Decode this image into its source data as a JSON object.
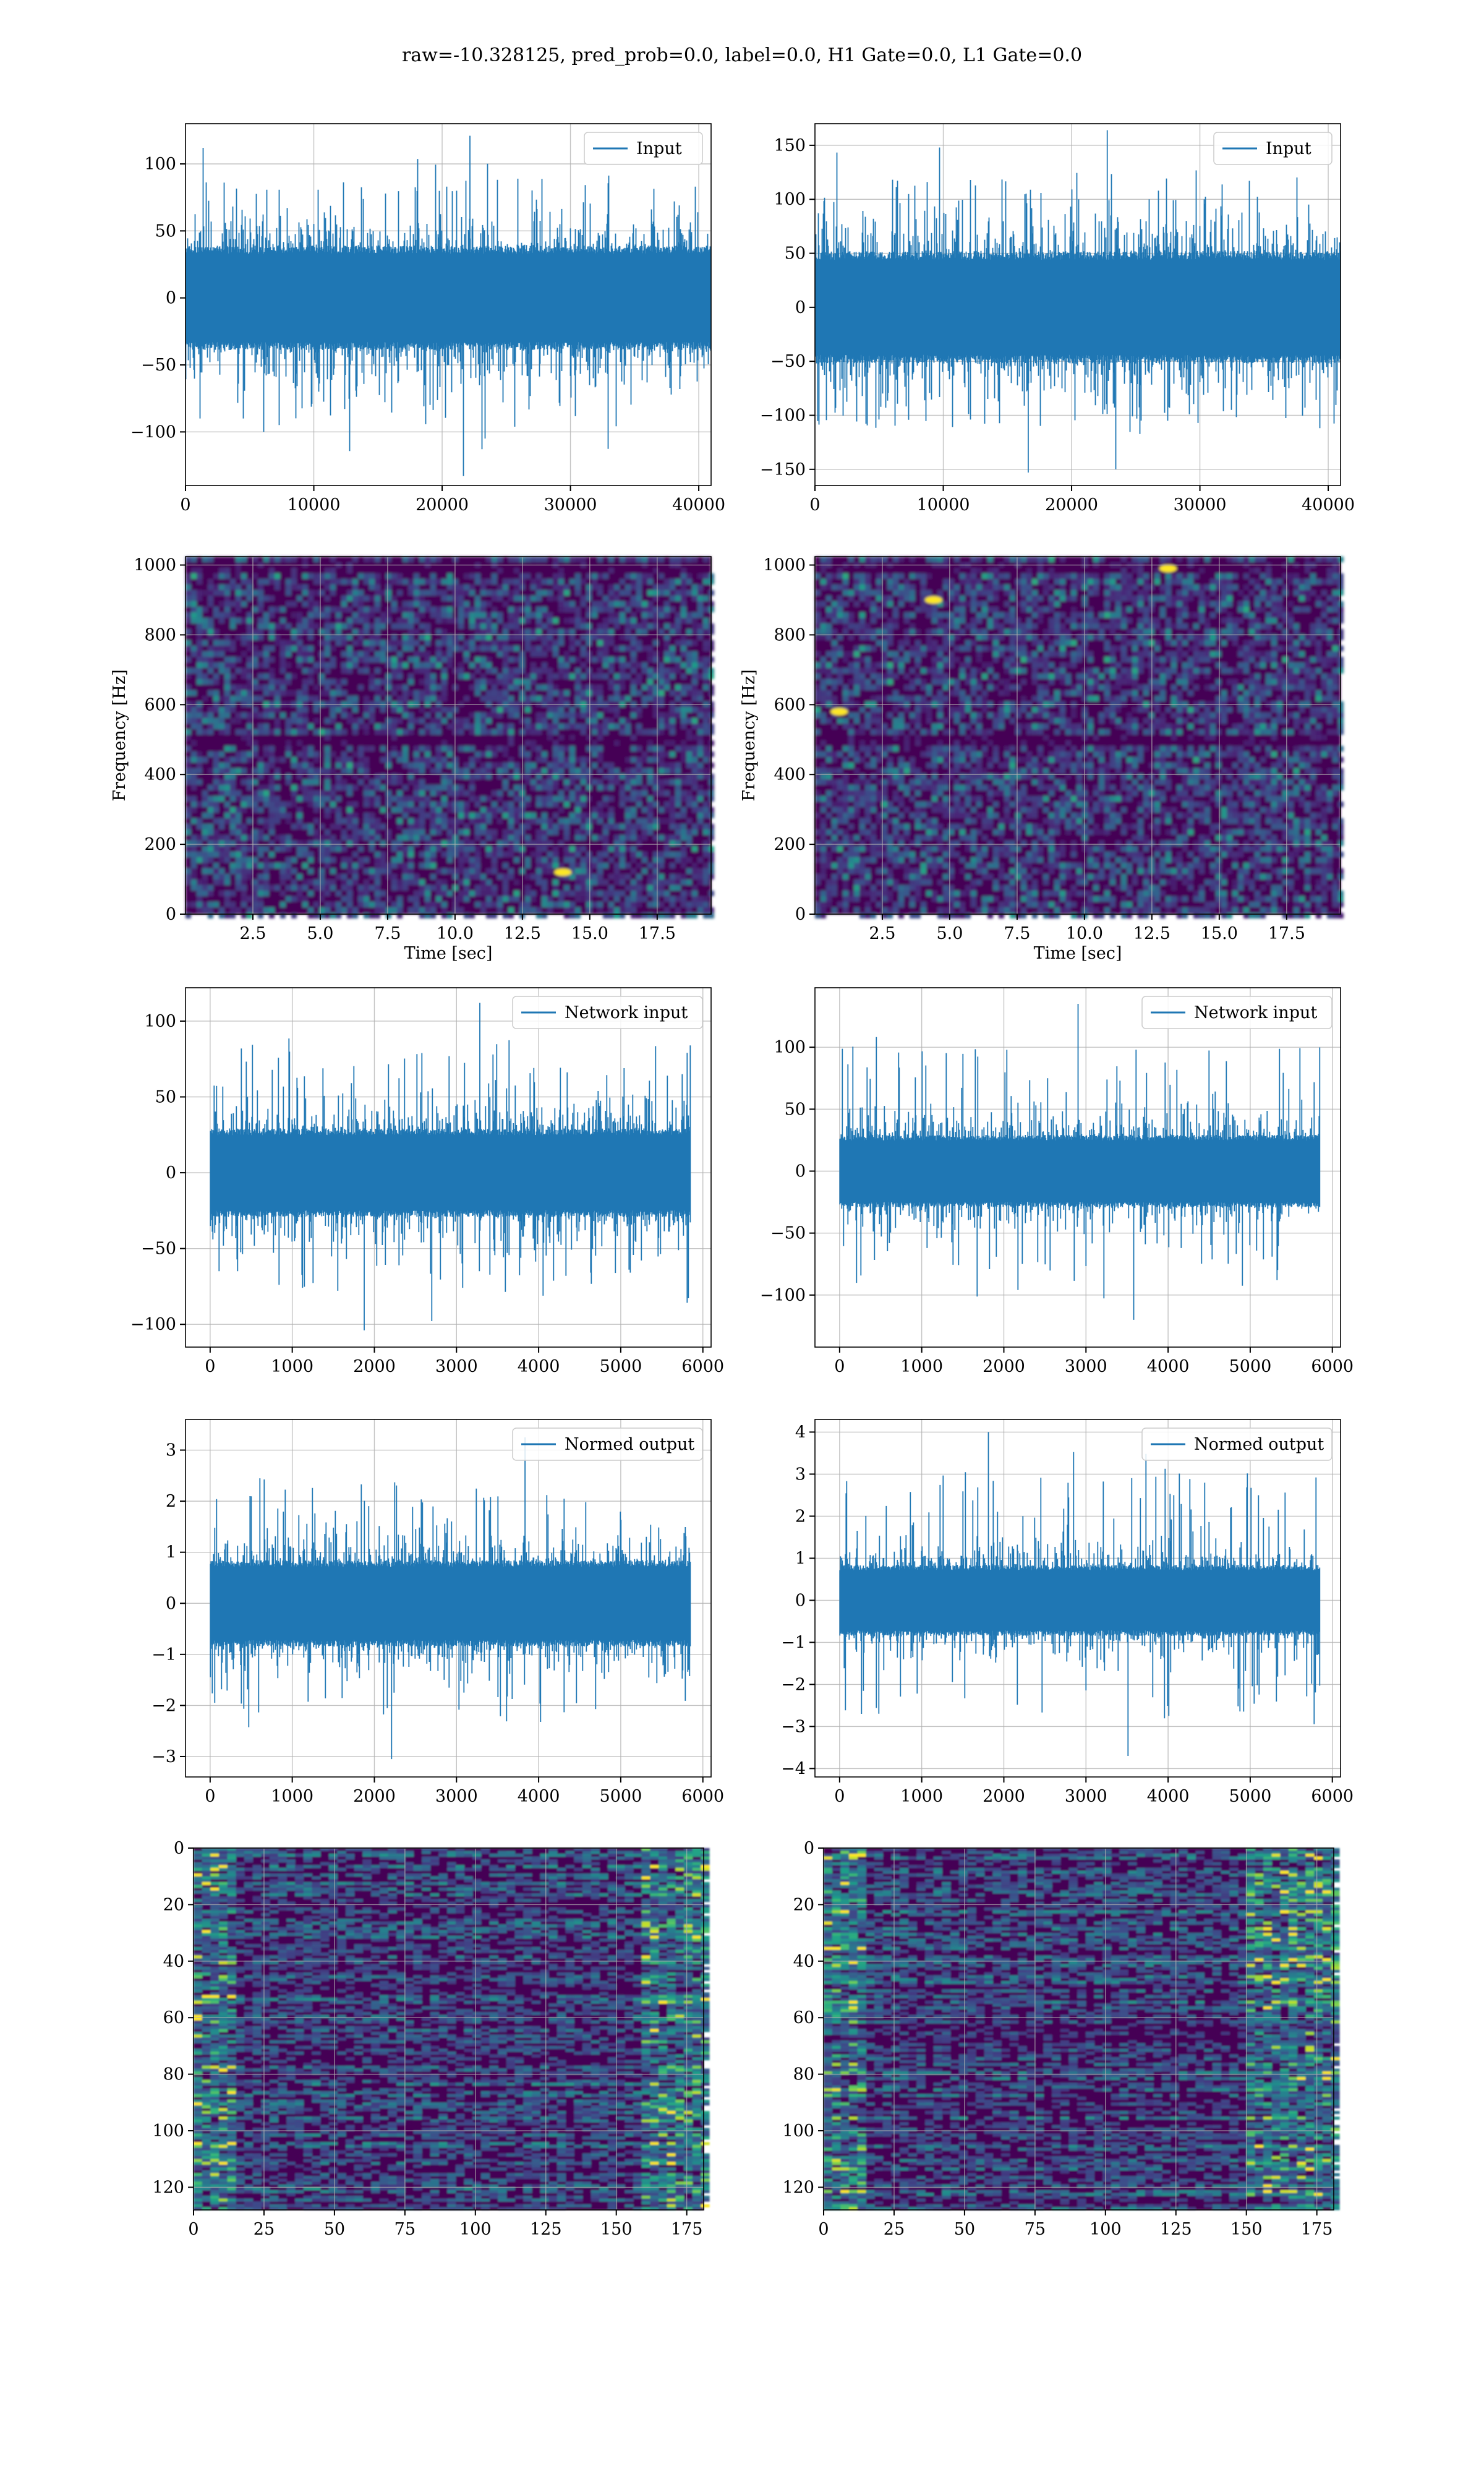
{
  "figure": {
    "suptitle": "raw=-10.328125, pred_prob=0.0, label=0.0, H1 Gate=0.0, L1 Gate=0.0"
  },
  "colors": {
    "line": "#1f77b4",
    "viridis_dark": "#440154",
    "viridis_mid": "#3b528b",
    "viridis_teal": "#21918c",
    "viridis_green": "#5ec962",
    "viridis_yellow": "#fde725",
    "grid": "#b0b0b0"
  },
  "chart_data": [
    {
      "type": "line",
      "panel": "row1-left",
      "legend": "Input",
      "legend_loc": "upper right",
      "xlim": [
        0,
        40960
      ],
      "ylim": [
        -140,
        130
      ],
      "xticks": [
        0,
        10000,
        20000,
        30000,
        40000
      ],
      "xticklabels": [
        "0",
        "10000",
        "20000",
        "30000",
        "40000"
      ],
      "yticks": [
        -100,
        -50,
        0,
        50,
        100
      ],
      "yticklabels": [
        "−100",
        "−50",
        "0",
        "50",
        "100"
      ],
      "signal": {
        "n": 40960,
        "envelope_typical": 60,
        "peak_max": 121,
        "peak_min": -133
      },
      "grid": true
    },
    {
      "type": "line",
      "panel": "row1-right",
      "legend": "Input",
      "legend_loc": "upper right",
      "xlim": [
        0,
        40960
      ],
      "ylim": [
        -165,
        170
      ],
      "xticks": [
        0,
        10000,
        20000,
        30000,
        40000
      ],
      "xticklabels": [
        "0",
        "10000",
        "20000",
        "30000",
        "40000"
      ],
      "yticks": [
        -150,
        -100,
        -50,
        0,
        50,
        100,
        150
      ],
      "yticklabels": [
        "−150",
        "−100",
        "−50",
        "0",
        "50",
        "100",
        "150"
      ],
      "signal": {
        "n": 40960,
        "envelope_typical": 80,
        "peak_max": 164,
        "peak_min": -153
      },
      "grid": true
    },
    {
      "type": "heatmap",
      "panel": "row2-left",
      "subtype": "spectrogram",
      "xlabel": "Time [sec]",
      "ylabel": "Frequency [Hz]",
      "xlim": [
        0,
        19.5
      ],
      "ylim": [
        0,
        1024
      ],
      "xticks": [
        2.5,
        5.0,
        7.5,
        10.0,
        12.5,
        15.0,
        17.5
      ],
      "xticklabels": [
        "2.5",
        "5.0",
        "7.5",
        "10.0",
        "12.5",
        "15.0",
        "17.5"
      ],
      "yticks": [
        0,
        200,
        400,
        600,
        800,
        1000
      ],
      "yticklabels": [
        "0",
        "200",
        "400",
        "600",
        "800",
        "1000"
      ],
      "bright_spots": [
        [
          14.0,
          120
        ]
      ],
      "colormap": "viridis",
      "grid": true
    },
    {
      "type": "heatmap",
      "panel": "row2-right",
      "subtype": "spectrogram",
      "xlabel": "Time [sec]",
      "ylabel": "Frequency [Hz]",
      "xlim": [
        0,
        19.5
      ],
      "ylim": [
        0,
        1024
      ],
      "xticks": [
        2.5,
        5.0,
        7.5,
        10.0,
        12.5,
        15.0,
        17.5
      ],
      "xticklabels": [
        "2.5",
        "5.0",
        "7.5",
        "10.0",
        "12.5",
        "15.0",
        "17.5"
      ],
      "yticks": [
        0,
        200,
        400,
        600,
        800,
        1000
      ],
      "yticklabels": [
        "0",
        "200",
        "400",
        "600",
        "800",
        "1000"
      ],
      "bright_spots": [
        [
          0.9,
          580
        ],
        [
          4.4,
          900
        ],
        [
          13.1,
          990
        ]
      ],
      "colormap": "viridis",
      "grid": true
    },
    {
      "type": "line",
      "panel": "row3-left",
      "legend": "Network input",
      "legend_loc": "upper right",
      "xlim": [
        -300,
        6100
      ],
      "ylim": [
        -115,
        122
      ],
      "xticks": [
        0,
        1000,
        2000,
        3000,
        4000,
        5000,
        6000
      ],
      "xticklabels": [
        "0",
        "1000",
        "2000",
        "3000",
        "4000",
        "5000",
        "6000"
      ],
      "yticks": [
        -100,
        -50,
        0,
        50,
        100
      ],
      "yticklabels": [
        "−100",
        "−50",
        "0",
        "50",
        "100"
      ],
      "signal": {
        "n": 5850,
        "envelope_typical": 45,
        "peak_max": 112,
        "peak_min": -104
      },
      "grid": true
    },
    {
      "type": "line",
      "panel": "row3-right",
      "legend": "Network input",
      "legend_loc": "upper right",
      "xlim": [
        -300,
        6100
      ],
      "ylim": [
        -142,
        148
      ],
      "xticks": [
        0,
        1000,
        2000,
        3000,
        4000,
        5000,
        6000
      ],
      "xticklabels": [
        "0",
        "1000",
        "2000",
        "3000",
        "4000",
        "5000",
        "6000"
      ],
      "yticks": [
        -100,
        -50,
        0,
        50,
        100
      ],
      "yticklabels": [
        "−100",
        "−50",
        "0",
        "50",
        "100"
      ],
      "signal": {
        "n": 5850,
        "envelope_typical": 45,
        "peak_max": 135,
        "peak_min": -120
      },
      "grid": true
    },
    {
      "type": "line",
      "panel": "row4-left",
      "legend": "Normed output",
      "legend_loc": "upper right",
      "xlim": [
        -300,
        6100
      ],
      "ylim": [
        -3.4,
        3.6
      ],
      "xticks": [
        0,
        1000,
        2000,
        3000,
        4000,
        5000,
        6000
      ],
      "xticklabels": [
        "0",
        "1000",
        "2000",
        "3000",
        "4000",
        "5000",
        "6000"
      ],
      "yticks": [
        -3,
        -2,
        -1,
        0,
        1,
        2,
        3
      ],
      "yticklabels": [
        "−3",
        "−2",
        "−1",
        "0",
        "1",
        "2",
        "3"
      ],
      "signal": {
        "n": 5850,
        "envelope_typical": 1.3,
        "peak_max": 3.25,
        "peak_min": -3.05
      },
      "grid": true
    },
    {
      "type": "line",
      "panel": "row4-right",
      "legend": "Normed output",
      "legend_loc": "upper right",
      "xlim": [
        -300,
        6100
      ],
      "ylim": [
        -4.2,
        4.3
      ],
      "xticks": [
        0,
        1000,
        2000,
        3000,
        4000,
        5000,
        6000
      ],
      "xticklabels": [
        "0",
        "1000",
        "2000",
        "3000",
        "4000",
        "5000",
        "6000"
      ],
      "yticks": [
        -4,
        -3,
        -2,
        -1,
        0,
        1,
        2,
        3,
        4
      ],
      "yticklabels": [
        "−4",
        "−3",
        "−2",
        "−1",
        "0",
        "1",
        "2",
        "3",
        "4"
      ],
      "signal": {
        "n": 5850,
        "envelope_typical": 1.3,
        "peak_max": 4.0,
        "peak_min": -3.7
      },
      "grid": true
    },
    {
      "type": "heatmap",
      "panel": "row5-left",
      "subtype": "feature-map",
      "xlim": [
        0,
        181
      ],
      "ylim": [
        128,
        0
      ],
      "xticks": [
        0,
        25,
        50,
        75,
        100,
        125,
        150,
        175
      ],
      "xticklabels": [
        "0",
        "25",
        "50",
        "75",
        "100",
        "125",
        "150",
        "175"
      ],
      "yticks": [
        0,
        20,
        40,
        60,
        80,
        100,
        120
      ],
      "yticklabels": [
        "0",
        "20",
        "40",
        "60",
        "80",
        "100",
        "120"
      ],
      "bright_columns": [
        [
          0,
          12
        ],
        [
          158,
          181
        ]
      ],
      "colormap": "viridis",
      "grid": true
    },
    {
      "type": "heatmap",
      "panel": "row5-right",
      "subtype": "feature-map",
      "xlim": [
        0,
        181
      ],
      "ylim": [
        128,
        0
      ],
      "xticks": [
        0,
        25,
        50,
        75,
        100,
        125,
        150,
        175
      ],
      "xticklabels": [
        "0",
        "25",
        "50",
        "75",
        "100",
        "125",
        "150",
        "175"
      ],
      "yticks": [
        0,
        20,
        40,
        60,
        80,
        100,
        120
      ],
      "yticklabels": [
        "0",
        "20",
        "40",
        "60",
        "80",
        "100",
        "120"
      ],
      "bright_columns": [
        [
          0,
          12
        ],
        [
          150,
          181
        ]
      ],
      "colormap": "viridis",
      "grid": true
    }
  ]
}
